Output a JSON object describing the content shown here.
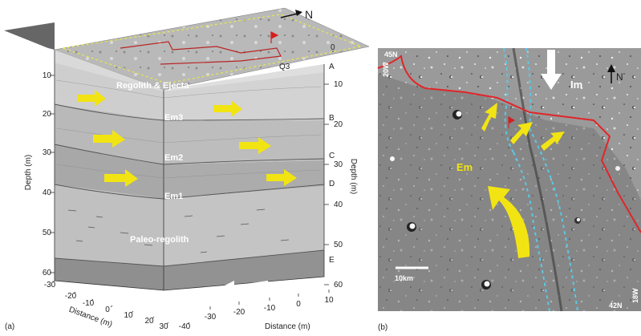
{
  "panel_a": {
    "caption": "(a)",
    "north_label": "N",
    "surface_track_label": "0",
    "site_label": "Q3",
    "units": [
      "Regolith & Ejecta",
      "Em3",
      "Em2",
      "Em1",
      "Paleo-regolith",
      "Im"
    ],
    "boundaries": [
      "A",
      "B",
      "C",
      "D",
      "E"
    ],
    "left_depth_axis": {
      "label": "Depth (m)",
      "ticks": [
        "10",
        "20",
        "30",
        "40",
        "50",
        "60"
      ]
    },
    "right_depth_axis": {
      "label": "Depth (m)",
      "ticks": [
        "0",
        "10",
        "20",
        "30",
        "40",
        "50",
        "60"
      ]
    },
    "front_distance_axis": {
      "label": "Distance (m)",
      "ticks": [
        "-30",
        "-20",
        "-10",
        "0",
        "10",
        "20",
        "30",
        "-40"
      ]
    },
    "side_distance_axis": {
      "label": "Distance (m)",
      "ticks": [
        "-30",
        "-20",
        "-10",
        "0",
        "10"
      ]
    }
  },
  "panel_b": {
    "caption": "(b)",
    "corner_labels": {
      "top_lat": "45N",
      "top_lon": "20W",
      "bottom_lat": "42N",
      "bottom_lon": "18W"
    },
    "north_label": "N",
    "unit_labels": [
      "Em",
      "Im"
    ],
    "scale_bar": "10km"
  },
  "colors": {
    "contact_line": "#e0262a",
    "ridge_line": "#5bc8e6",
    "flow_arrow": "#f2e412",
    "north_arrow": "#111111"
  }
}
